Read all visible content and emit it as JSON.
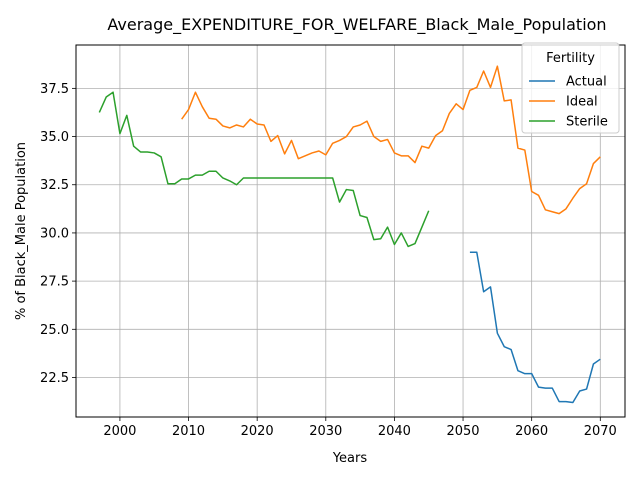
{
  "chart_data": {
    "type": "line",
    "title": "Average_EXPENDITURE_FOR_WELFARE_Black_Male_Population",
    "xlabel": "Years",
    "ylabel": "% of Black_Male Population",
    "xlim": [
      1993.6,
      2073.6
    ],
    "ylim": [
      20.45,
      39.75
    ],
    "x_ticks": [
      2000,
      2010,
      2020,
      2030,
      2040,
      2050,
      2060,
      2070
    ],
    "y_ticks": [
      22.5,
      25.0,
      27.5,
      30.0,
      32.5,
      35.0,
      37.5
    ],
    "grid": true,
    "legend": {
      "title": "Fertility",
      "placement": "top-right"
    },
    "series": [
      {
        "name": "Actual",
        "color": "#1f77b4",
        "x": [
          2051,
          2052,
          2053,
          2054,
          2055,
          2056,
          2057,
          2058,
          2059,
          2060,
          2061,
          2062,
          2063,
          2064,
          2065,
          2066,
          2067,
          2068,
          2069,
          2070
        ],
        "values": [
          29.0,
          29.0,
          26.95,
          27.2,
          24.8,
          24.1,
          23.95,
          22.85,
          22.7,
          22.7,
          22.0,
          21.95,
          21.95,
          21.25,
          21.25,
          21.2,
          21.8,
          21.9,
          23.2,
          23.45
        ]
      },
      {
        "name": "Ideal",
        "color": "#ff7f0e",
        "x": [
          2009,
          2010,
          2011,
          2012,
          2013,
          2014,
          2015,
          2016,
          2017,
          2018,
          2019,
          2020,
          2021,
          2022,
          2023,
          2024,
          2025,
          2026,
          2027,
          2028,
          2029,
          2030,
          2031,
          2032,
          2033,
          2034,
          2035,
          2036,
          2037,
          2038,
          2039,
          2040,
          2041,
          2042,
          2043,
          2044,
          2045,
          2046,
          2047,
          2048,
          2049,
          2050,
          2051,
          2052,
          2053,
          2054,
          2055,
          2056,
          2057,
          2058,
          2059,
          2060,
          2061,
          2062,
          2063,
          2064,
          2065,
          2066,
          2067,
          2068,
          2069,
          2070
        ],
        "values": [
          35.9,
          36.4,
          37.3,
          36.55,
          35.95,
          35.9,
          35.55,
          35.45,
          35.6,
          35.5,
          35.9,
          35.65,
          35.6,
          34.75,
          35.05,
          34.1,
          34.8,
          33.85,
          34.0,
          34.15,
          34.25,
          34.05,
          34.65,
          34.8,
          35.0,
          35.5,
          35.6,
          35.8,
          35.0,
          34.75,
          34.85,
          34.15,
          34.0,
          34.0,
          33.65,
          34.5,
          34.4,
          35.05,
          35.3,
          36.2,
          36.7,
          36.4,
          37.4,
          37.55,
          38.4,
          37.55,
          38.65,
          36.85,
          36.9,
          34.4,
          34.3,
          32.15,
          31.95,
          31.2,
          31.1,
          31.0,
          31.25,
          31.8,
          32.3,
          32.55,
          33.6,
          33.95
        ]
      },
      {
        "name": "Sterile",
        "color": "#2ca02c",
        "x": [
          1997,
          1998,
          1999,
          2000,
          2001,
          2002,
          2003,
          2004,
          2005,
          2006,
          2007,
          2008,
          2009,
          2010,
          2011,
          2012,
          2013,
          2014,
          2015,
          2016,
          2017,
          2018,
          2019,
          2020,
          2021,
          2022,
          2023,
          2024,
          2025,
          2026,
          2027,
          2028,
          2029,
          2030,
          2031,
          2032,
          2033,
          2034,
          2035,
          2036,
          2037,
          2038,
          2039,
          2040,
          2041,
          2042,
          2043,
          2044,
          2045
        ],
        "values": [
          36.25,
          37.05,
          37.3,
          35.15,
          36.1,
          34.5,
          34.2,
          34.2,
          34.15,
          33.95,
          32.55,
          32.55,
          32.8,
          32.8,
          33.0,
          33.0,
          33.2,
          33.2,
          32.85,
          32.7,
          32.5,
          32.85,
          32.85,
          32.85,
          32.85,
          32.85,
          32.85,
          32.85,
          32.85,
          32.85,
          32.85,
          32.85,
          32.85,
          32.85,
          32.85,
          31.6,
          32.25,
          32.2,
          30.9,
          30.8,
          29.65,
          29.7,
          30.3,
          29.4,
          30.0,
          29.3,
          29.45,
          30.3,
          31.15
        ]
      }
    ]
  }
}
